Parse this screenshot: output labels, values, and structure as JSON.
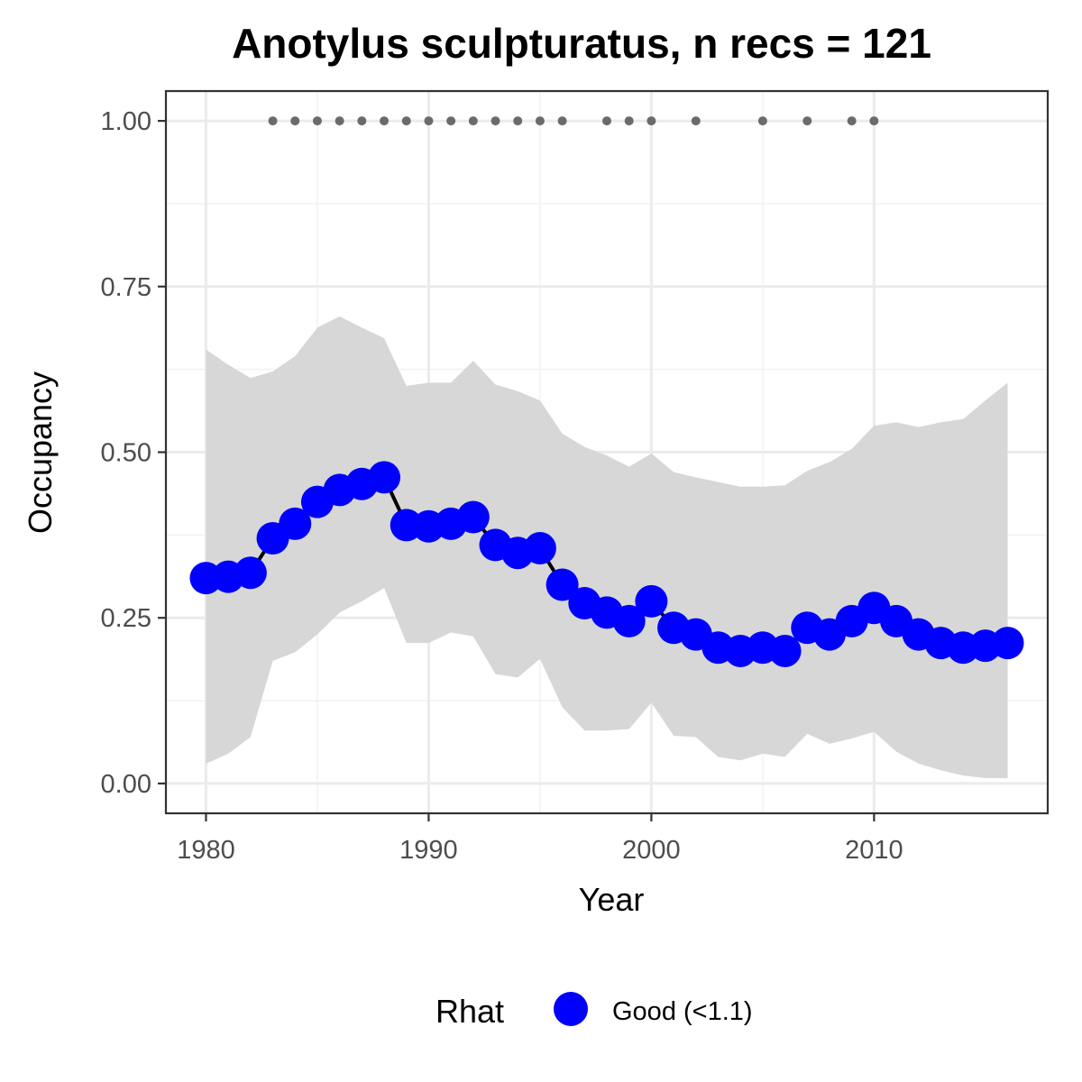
{
  "chart_data": {
    "type": "line",
    "title": "Anotylus sculpturatus, n recs = 121",
    "xlabel": "Year",
    "ylabel": "Occupancy",
    "xlim": [
      1978.2,
      2017.8
    ],
    "ylim": [
      -0.045,
      1.045
    ],
    "x_ticks": [
      1980,
      1990,
      2000,
      2010
    ],
    "x_tick_labels": [
      "1980",
      "1990",
      "2000",
      "2010"
    ],
    "y_ticks": [
      0,
      0.25,
      0.5,
      0.75,
      1.0
    ],
    "y_tick_labels": [
      "0.00",
      "0.25",
      "0.50",
      "0.75",
      "1.00"
    ],
    "grid": true,
    "legend": {
      "position": "bottom",
      "title": "Rhat",
      "entries": [
        {
          "label": "Good (<1.1)",
          "color": "#0000ff"
        }
      ]
    },
    "colors": {
      "occupancy": "#0000ff",
      "line": "#000000",
      "ribbon": "#d6d6d6",
      "records": "#6b6b6b"
    },
    "years": [
      1980,
      1981,
      1982,
      1983,
      1984,
      1985,
      1986,
      1987,
      1988,
      1989,
      1990,
      1991,
      1992,
      1993,
      1994,
      1995,
      1996,
      1997,
      1998,
      1999,
      2000,
      2001,
      2002,
      2003,
      2004,
      2005,
      2006,
      2007,
      2008,
      2009,
      2010,
      2011,
      2012,
      2013,
      2014,
      2015,
      2016
    ],
    "occupancy": [
      0.31,
      0.312,
      0.318,
      0.37,
      0.392,
      0.425,
      0.443,
      0.452,
      0.462,
      0.39,
      0.388,
      0.392,
      0.402,
      0.36,
      0.348,
      0.355,
      0.3,
      0.272,
      0.258,
      0.245,
      0.275,
      0.235,
      0.225,
      0.205,
      0.2,
      0.205,
      0.2,
      0.235,
      0.225,
      0.245,
      0.265,
      0.245,
      0.225,
      0.212,
      0.205,
      0.208,
      0.212
    ],
    "ci_upper": [
      0.655,
      0.632,
      0.612,
      0.622,
      0.645,
      0.688,
      0.705,
      0.688,
      0.672,
      0.6,
      0.605,
      0.605,
      0.638,
      0.602,
      0.592,
      0.578,
      0.528,
      0.508,
      0.495,
      0.478,
      0.498,
      0.47,
      0.462,
      0.455,
      0.448,
      0.448,
      0.45,
      0.472,
      0.485,
      0.505,
      0.54,
      0.545,
      0.538,
      0.545,
      0.55,
      0.578,
      0.605
    ],
    "ci_lower": [
      0.03,
      0.045,
      0.07,
      0.185,
      0.198,
      0.225,
      0.258,
      0.275,
      0.295,
      0.212,
      0.212,
      0.228,
      0.222,
      0.165,
      0.16,
      0.188,
      0.115,
      0.08,
      0.08,
      0.082,
      0.122,
      0.072,
      0.07,
      0.04,
      0.035,
      0.045,
      0.04,
      0.075,
      0.06,
      0.068,
      0.078,
      0.048,
      0.03,
      0.02,
      0.012,
      0.008,
      0.008
    ],
    "record_years": [
      1983,
      1984,
      1985,
      1986,
      1987,
      1988,
      1989,
      1990,
      1991,
      1992,
      1993,
      1994,
      1995,
      1996,
      1998,
      1999,
      2000,
      2002,
      2005,
      2007,
      2009,
      2010
    ],
    "record_value": 1.0
  }
}
